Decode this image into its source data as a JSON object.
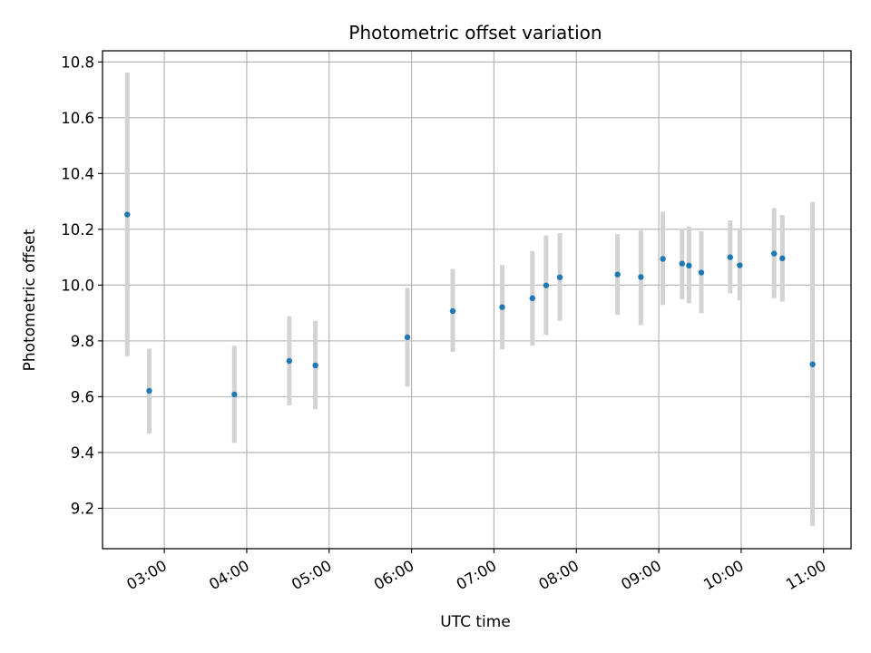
{
  "chart_data": {
    "type": "scatter",
    "title": "Photometric offset variation",
    "xlabel": "UTC time",
    "ylabel": "Photometric offset",
    "x_unit": "hours (UTC)",
    "xlim": [
      "02:15",
      "11:20"
    ],
    "ylim": [
      9.055,
      10.84
    ],
    "xticks": [
      "03:00",
      "04:00",
      "05:00",
      "06:00",
      "07:00",
      "08:00",
      "09:00",
      "10:00",
      "11:00"
    ],
    "yticks": [
      "9.2",
      "9.4",
      "9.6",
      "9.8",
      "10.0",
      "10.2",
      "10.4",
      "10.6",
      "10.8"
    ],
    "grid": true,
    "marker_color": "#1f77b4",
    "errorbar_color": "#d3d3d3",
    "points": [
      {
        "x": "02:33",
        "y": 10.253,
        "ylow": 9.745,
        "yhigh": 10.762
      },
      {
        "x": "02:49",
        "y": 9.621,
        "ylow": 9.468,
        "yhigh": 9.772
      },
      {
        "x": "03:51",
        "y": 9.608,
        "ylow": 9.434,
        "yhigh": 9.783
      },
      {
        "x": "04:31",
        "y": 9.728,
        "ylow": 9.569,
        "yhigh": 9.888
      },
      {
        "x": "04:50",
        "y": 9.712,
        "ylow": 9.555,
        "yhigh": 9.872
      },
      {
        "x": "05:57",
        "y": 9.813,
        "ylow": 9.636,
        "yhigh": 9.99
      },
      {
        "x": "06:30",
        "y": 9.907,
        "ylow": 9.761,
        "yhigh": 10.058
      },
      {
        "x": "07:06",
        "y": 9.921,
        "ylow": 9.77,
        "yhigh": 10.072
      },
      {
        "x": "07:28",
        "y": 9.953,
        "ylow": 9.783,
        "yhigh": 10.122
      },
      {
        "x": "07:38",
        "y": 9.999,
        "ylow": 9.821,
        "yhigh": 10.178
      },
      {
        "x": "07:48",
        "y": 10.028,
        "ylow": 9.872,
        "yhigh": 10.186
      },
      {
        "x": "08:30",
        "y": 10.038,
        "ylow": 9.894,
        "yhigh": 10.183
      },
      {
        "x": "08:47",
        "y": 10.029,
        "ylow": 9.857,
        "yhigh": 10.196
      },
      {
        "x": "09:03",
        "y": 10.094,
        "ylow": 9.929,
        "yhigh": 10.263
      },
      {
        "x": "09:17",
        "y": 10.077,
        "ylow": 9.949,
        "yhigh": 10.201
      },
      {
        "x": "09:22",
        "y": 10.07,
        "ylow": 9.935,
        "yhigh": 10.21
      },
      {
        "x": "09:31",
        "y": 10.045,
        "ylow": 9.899,
        "yhigh": 10.193
      },
      {
        "x": "09:52",
        "y": 10.1,
        "ylow": 9.971,
        "yhigh": 10.232
      },
      {
        "x": "09:59",
        "y": 10.071,
        "ylow": 9.946,
        "yhigh": 10.204
      },
      {
        "x": "10:24",
        "y": 10.113,
        "ylow": 9.953,
        "yhigh": 10.276
      },
      {
        "x": "10:30",
        "y": 10.096,
        "ylow": 9.941,
        "yhigh": 10.251
      },
      {
        "x": "10:52",
        "y": 9.716,
        "ylow": 9.136,
        "yhigh": 10.298
      }
    ]
  }
}
